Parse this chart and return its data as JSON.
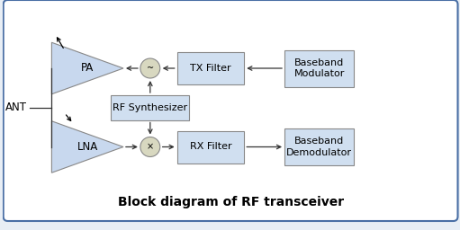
{
  "bg_color": "#e8eef5",
  "border_color": "#4a6fa5",
  "inner_bg": "#ffffff",
  "box_fill": "#d0dff0",
  "box_edge": "#888888",
  "triangle_fill": "#c8d8ee",
  "triangle_edge": "#888888",
  "circle_fill": "#d8d8c0",
  "circle_edge": "#888888",
  "arrow_color": "#333333",
  "title": "Block diagram of RF transceiver",
  "title_fontsize": 10,
  "label_fontsize": 8,
  "ant_label": "ANT",
  "pa_label": "PA",
  "lna_label": "LNA",
  "tx_filter_label": "TX Filter",
  "rx_filter_label": "RX Filter",
  "bb_mod_label": "Baseband\nModulator",
  "bb_demod_label": "Baseband\nDemodulator",
  "rf_synth_label": "RF Synthesizer",
  "xlim": [
    0,
    10.22
  ],
  "ylim": [
    0,
    5.12
  ]
}
